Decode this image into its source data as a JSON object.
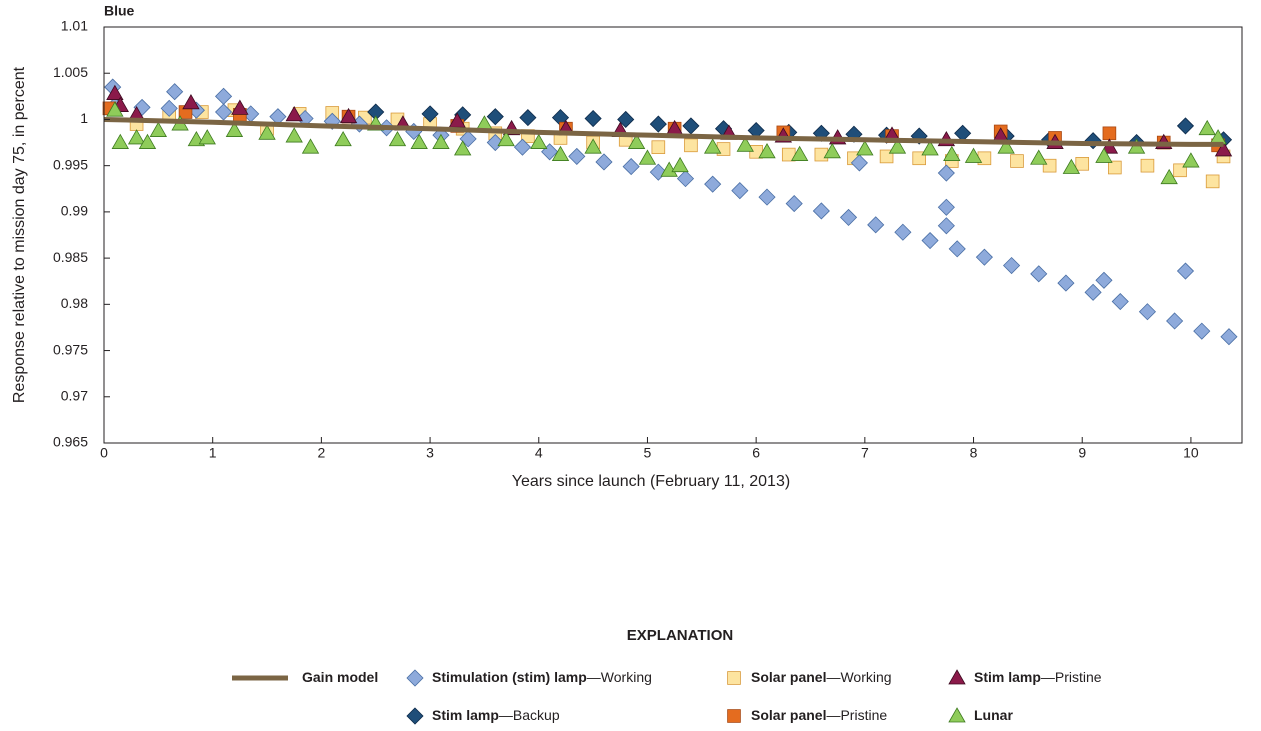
{
  "chart_data": {
    "type": "scatter",
    "title": "Blue",
    "x_label": "Years since launch (February 11, 2013)",
    "y_label": "Response relative to mission day 75, in percent",
    "legend_title": "EXPLANATION",
    "xlim": [
      0,
      10.47
    ],
    "ylim": [
      0.965,
      1.01
    ],
    "xticks": [
      0,
      1,
      2,
      3,
      4,
      5,
      6,
      7,
      8,
      9,
      10
    ],
    "yticks": [
      0.965,
      0.97,
      0.975,
      0.98,
      0.985,
      0.99,
      0.995,
      1,
      1.005,
      1.01
    ],
    "series": [
      {
        "name": "Solar panel—Working",
        "marker": "square",
        "color": "#fde4a0",
        "x": [
          0.3,
          0.6,
          0.9,
          1.2,
          1.5,
          1.8,
          2.1,
          2.4,
          2.7,
          3.0,
          3.3,
          3.6,
          3.9,
          4.2,
          4.5,
          4.8,
          5.1,
          5.4,
          5.7,
          6.0,
          6.3,
          6.6,
          6.9,
          7.2,
          7.5,
          7.8,
          8.1,
          8.4,
          8.7,
          9.0,
          9.3,
          9.6,
          9.9,
          10.2,
          10.3
        ],
        "values": [
          0.9995,
          1.0005,
          1.0008,
          1.001,
          0.999,
          1.0006,
          1.0007,
          1.0002,
          1.0,
          0.9995,
          0.999,
          0.9985,
          0.9982,
          0.998,
          0.9975,
          0.9978,
          0.997,
          0.9972,
          0.9968,
          0.9965,
          0.9962,
          0.9962,
          0.9958,
          0.996,
          0.9958,
          0.9955,
          0.9958,
          0.9955,
          0.995,
          0.9952,
          0.9948,
          0.995,
          0.9945,
          0.9933,
          0.996
        ]
      },
      {
        "name": "Stimulation (stim) lamp—Working",
        "marker": "diamond",
        "color": "#8eaadb",
        "x": [
          0.1,
          0.35,
          0.6,
          0.85,
          1.1,
          1.35,
          1.6,
          1.85,
          2.1,
          2.35,
          2.6,
          2.85,
          3.1,
          3.35,
          3.6,
          3.85,
          4.1,
          4.35,
          4.6,
          4.85,
          5.1,
          5.35,
          5.6,
          5.85,
          6.1,
          6.35,
          6.6,
          6.85,
          7.1,
          7.35,
          7.6,
          7.85,
          8.1,
          8.35,
          8.6,
          8.85,
          9.1,
          9.35,
          9.6,
          9.85,
          10.1,
          10.35,
          0.08,
          0.65,
          1.1,
          7.75,
          7.75,
          7.75,
          9.95,
          9.2,
          6.95
        ],
        "values": [
          1.0015,
          1.0013,
          1.0012,
          1.001,
          1.0008,
          1.0006,
          1.0003,
          1.0001,
          0.9998,
          0.9995,
          0.9991,
          0.9987,
          0.9983,
          0.9979,
          0.9975,
          0.997,
          0.9965,
          0.996,
          0.9954,
          0.9949,
          0.9943,
          0.9936,
          0.993,
          0.9923,
          0.9916,
          0.9909,
          0.9901,
          0.9894,
          0.9886,
          0.9878,
          0.9869,
          0.986,
          0.9851,
          0.9842,
          0.9833,
          0.9823,
          0.9813,
          0.9803,
          0.9792,
          0.9782,
          0.9771,
          0.9765,
          1.0035,
          1.003,
          1.0025,
          0.9905,
          0.9885,
          0.9942,
          0.9836,
          0.9826,
          0.9953
        ]
      },
      {
        "name": "Stim lamp—Backup",
        "marker": "diamond",
        "color": "#1f4e79",
        "x": [
          2.5,
          3.0,
          3.3,
          3.6,
          3.9,
          4.2,
          4.5,
          4.8,
          5.1,
          5.4,
          5.7,
          6.0,
          6.3,
          6.6,
          6.9,
          7.2,
          7.5,
          7.9,
          8.3,
          8.7,
          9.1,
          9.5,
          9.95,
          10.3
        ],
        "values": [
          1.0008,
          1.0006,
          1.0005,
          1.0003,
          1.0002,
          1.0002,
          1.0001,
          1.0,
          0.9995,
          0.9993,
          0.999,
          0.9988,
          0.9986,
          0.9985,
          0.9984,
          0.9983,
          0.9982,
          0.9985,
          0.9982,
          0.9978,
          0.9977,
          0.9975,
          0.9993,
          0.9978
        ]
      },
      {
        "name": "Solar panel—Pristine",
        "marker": "square",
        "color": "#e46c1f",
        "x": [
          0.05,
          0.75,
          1.25,
          2.25,
          3.25,
          4.25,
          5.25,
          6.25,
          7.25,
          8.25,
          8.75,
          9.25,
          9.75,
          10.25
        ],
        "values": [
          1.0012,
          1.0008,
          1.0005,
          1.0003,
          0.9993,
          0.999,
          0.999,
          0.9986,
          0.9982,
          0.9987,
          0.998,
          0.9985,
          0.9975,
          0.9972
        ]
      },
      {
        "name": "Stim lamp—Pristine",
        "marker": "triangle",
        "color": "#8b1a4a",
        "x": [
          0.1,
          0.15,
          0.3,
          0.8,
          1.25,
          1.75,
          2.25,
          2.75,
          3.25,
          3.75,
          4.25,
          4.75,
          5.25,
          5.75,
          6.25,
          6.75,
          7.25,
          7.75,
          8.25,
          8.75,
          9.25,
          9.75,
          10.3
        ],
        "values": [
          1.0028,
          1.0015,
          1.0005,
          1.0018,
          1.0012,
          1.0005,
          1.0003,
          0.9995,
          0.9998,
          0.999,
          0.999,
          0.9988,
          0.999,
          0.9985,
          0.9982,
          0.998,
          0.9983,
          0.9978,
          0.9982,
          0.9975,
          0.997,
          0.9975,
          0.9967
        ]
      },
      {
        "name": "Lunar",
        "marker": "triangle",
        "color": "#8fcc5a",
        "x": [
          0.1,
          0.15,
          0.3,
          0.4,
          0.5,
          0.7,
          0.85,
          0.95,
          1.2,
          1.5,
          1.75,
          1.9,
          2.2,
          2.5,
          2.7,
          2.9,
          3.1,
          3.3,
          3.5,
          3.7,
          4.0,
          4.2,
          4.5,
          4.9,
          5.0,
          5.2,
          5.3,
          5.6,
          5.9,
          6.1,
          6.4,
          6.7,
          7.0,
          7.3,
          7.6,
          7.8,
          8.0,
          8.3,
          8.6,
          8.9,
          9.2,
          9.5,
          9.8,
          10.0,
          10.15,
          10.25
        ],
        "values": [
          1.001,
          0.9975,
          0.998,
          0.9975,
          0.9988,
          0.9995,
          0.9978,
          0.998,
          0.9988,
          0.9985,
          0.9982,
          0.997,
          0.9978,
          0.9995,
          0.9978,
          0.9975,
          0.9975,
          0.9968,
          0.9995,
          0.9978,
          0.9975,
          0.9962,
          0.997,
          0.9975,
          0.9958,
          0.9945,
          0.995,
          0.997,
          0.9972,
          0.9965,
          0.9962,
          0.9965,
          0.9968,
          0.997,
          0.9968,
          0.9962,
          0.996,
          0.997,
          0.9958,
          0.9948,
          0.996,
          0.997,
          0.9937,
          0.9955,
          0.999,
          0.998
        ]
      },
      {
        "name": "Gain model",
        "marker": "line",
        "color": "#7b6544",
        "x": [
          0,
          1,
          2,
          3,
          4,
          5,
          6,
          7,
          8,
          9,
          10,
          10.3
        ],
        "values": [
          1.0,
          0.9997,
          0.9993,
          0.999,
          0.9986,
          0.9983,
          0.998,
          0.9978,
          0.9976,
          0.9974,
          0.9973,
          0.9973
        ]
      }
    ]
  }
}
